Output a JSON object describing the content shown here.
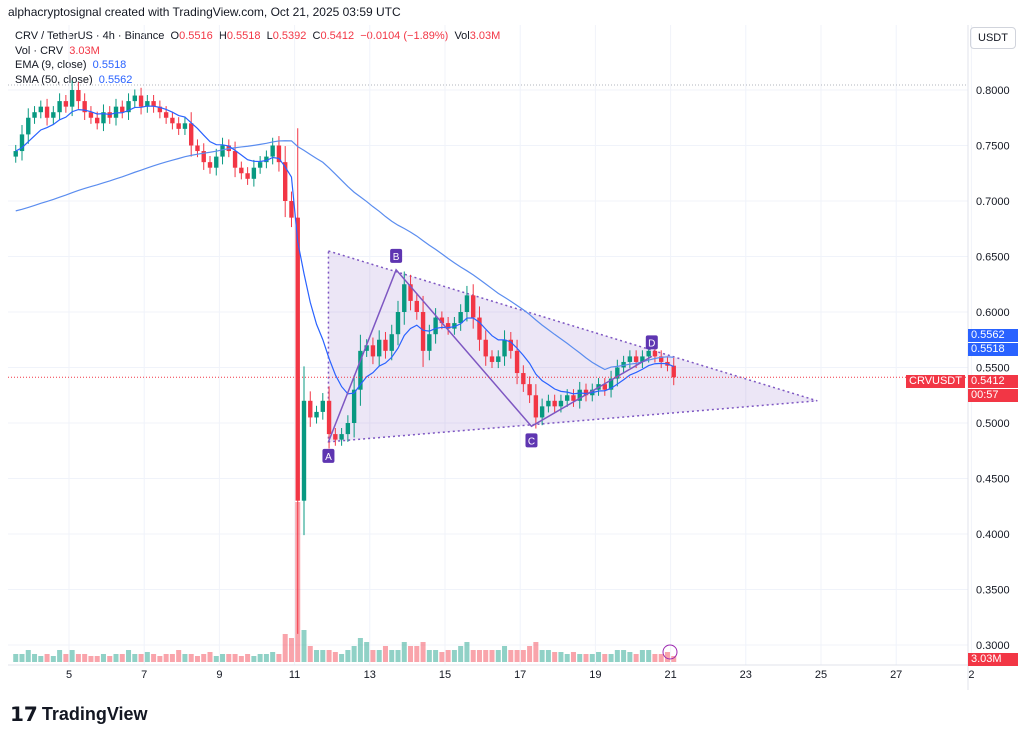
{
  "credit": "alphacryptosignal created with TradingView.com, Oct 21, 2025 03:59 UTC",
  "symbol": {
    "name": "CRV / TetherUS · 4h · Binance",
    "o_label": "O",
    "o": "0.5516",
    "h_label": "H",
    "h": "0.5518",
    "l_label": "L",
    "l": "0.5392",
    "c_label": "C",
    "c": "0.5412",
    "change": "−0.0104 (−1.89%)",
    "vol_label": "Vol",
    "vol": "3.03M"
  },
  "indicators": [
    {
      "label": "Vol · CRV",
      "value": "3.03M"
    },
    {
      "label": "EMA (9, close)",
      "value": "0.5518"
    },
    {
      "label": "SMA (50, close)",
      "value": "0.5562"
    }
  ],
  "currency": "USDT",
  "price_tags": {
    "sma": "0.5562",
    "ema": "0.5518",
    "symbol": "CRVUSDT",
    "last": "0.5412",
    "countdown": "00:57",
    "volume": "3.03M"
  },
  "logo": "TradingView",
  "colors": {
    "up": "#089981",
    "down": "#f23645",
    "ema": "#2962ff",
    "sma": "#5b8def",
    "pattern": "#7e57c2"
  },
  "chart_data": {
    "type": "candlestick",
    "interval": "4h",
    "start_day": 3.5,
    "first_open": 0.74,
    "closes": [
      0.745,
      0.76,
      0.775,
      0.78,
      0.785,
      0.775,
      0.78,
      0.79,
      0.785,
      0.8,
      0.79,
      0.78,
      0.775,
      0.77,
      0.78,
      0.775,
      0.785,
      0.78,
      0.79,
      0.795,
      0.785,
      0.79,
      0.785,
      0.78,
      0.775,
      0.77,
      0.765,
      0.77,
      0.75,
      0.745,
      0.735,
      0.73,
      0.74,
      0.75,
      0.745,
      0.73,
      0.725,
      0.72,
      0.73,
      0.735,
      0.74,
      0.75,
      0.735,
      0.7,
      0.685,
      0.43,
      0.52,
      0.505,
      0.51,
      0.52,
      0.49,
      0.485,
      0.49,
      0.5,
      0.53,
      0.565,
      0.57,
      0.56,
      0.575,
      0.565,
      0.58,
      0.6,
      0.625,
      0.61,
      0.6,
      0.565,
      0.58,
      0.595,
      0.59,
      0.585,
      0.59,
      0.6,
      0.615,
      0.595,
      0.575,
      0.56,
      0.555,
      0.56,
      0.575,
      0.565,
      0.545,
      0.535,
      0.525,
      0.505,
      0.515,
      0.52,
      0.515,
      0.52,
      0.525,
      0.52,
      0.53,
      0.525,
      0.53,
      0.535,
      0.53,
      0.54,
      0.55,
      0.555,
      0.56,
      0.555,
      0.56,
      0.565,
      0.56,
      0.555,
      0.5516,
      0.5412
    ],
    "volumes": [
      2,
      2,
      3,
      2,
      1.5,
      2,
      1.5,
      3,
      2,
      3,
      2,
      2,
      1.5,
      1.5,
      2,
      1.5,
      2,
      2,
      3,
      2,
      2,
      2.5,
      2,
      1.5,
      2,
      2,
      3,
      2,
      2,
      1.5,
      2,
      2.5,
      1.5,
      2,
      2,
      2,
      1.5,
      2,
      1.5,
      2,
      2,
      2.5,
      2,
      7,
      6,
      40,
      8,
      4,
      3,
      3,
      3,
      2.5,
      2,
      3,
      4,
      6,
      5,
      3,
      3,
      4,
      3,
      3,
      5,
      4,
      4,
      5,
      3,
      3,
      2.5,
      3,
      3,
      4,
      5,
      3,
      3,
      3,
      3,
      3,
      4,
      3,
      3,
      3,
      4,
      5,
      3,
      3,
      2.5,
      2.5,
      2,
      2.5,
      2,
      2,
      2,
      2.5,
      2,
      2,
      3,
      3,
      2.5,
      2,
      3,
      3,
      2,
      2,
      2.5,
      1.5
    ],
    "y_ticks": [
      "0.8000",
      "0.7500",
      "0.7000",
      "0.6500",
      "0.6000",
      "0.5500",
      "0.5000",
      "0.4500",
      "0.4000",
      "0.3500",
      "0.3000"
    ],
    "ylim": [
      0.3,
      0.8
    ],
    "x_ticks": [
      "5",
      "7",
      "9",
      "11",
      "13",
      "15",
      "17",
      "19",
      "21",
      "23",
      "25",
      "27",
      "2"
    ],
    "pattern": {
      "triangle": [
        [
          11.9,
          0.655
        ],
        [
          24.9,
          0.52
        ],
        [
          11.9,
          0.483
        ]
      ],
      "points": [
        {
          "label": "A",
          "day": 11.9,
          "price": 0.483
        },
        {
          "label": "B",
          "day": 13.7,
          "price": 0.638
        },
        {
          "label": "C",
          "day": 17.3,
          "price": 0.497
        },
        {
          "label": "D",
          "day": 20.5,
          "price": 0.56
        }
      ]
    }
  }
}
